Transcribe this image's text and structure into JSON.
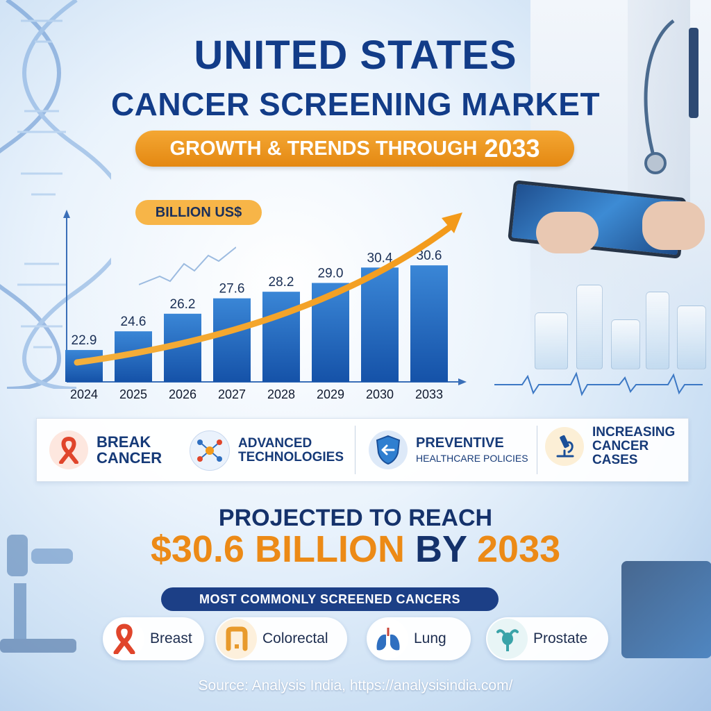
{
  "title_line1": "UNITED STATES",
  "title_line2": "CANCER SCREENING MARKET",
  "subtitle_text": "GROWTH & TRENDS THROUGH",
  "subtitle_year": "2033",
  "unit_label": "BILLION US$",
  "chart_data": {
    "type": "bar",
    "categories": [
      "2024",
      "2025",
      "2026",
      "2027",
      "2028",
      "2029",
      "2030",
      "2033"
    ],
    "values": [
      22.9,
      24.6,
      26.2,
      27.6,
      28.2,
      29.0,
      30.4,
      30.6
    ],
    "value_labels": [
      "22.9",
      "24.6",
      "26.2",
      "27.6",
      "28.2",
      "29.0",
      "30.4",
      "30.6"
    ],
    "ylabel": "BILLION US$",
    "ylim": [
      20,
      32
    ],
    "grid": false,
    "trend_arrow": true
  },
  "drivers": [
    {
      "line1": "BREAK",
      "line2": "CANCER",
      "icon": "ribbon-icon"
    },
    {
      "line1": "ADVANCED",
      "line2": "TECHNOLOGIES",
      "icon": "network-icon"
    },
    {
      "line1": "PREVENTIVE",
      "line2": "HEALTHCARE POLICIES",
      "icon": "shield-icon"
    },
    {
      "line1": "INCREASING",
      "line2": "CANCER",
      "line3": "CASES",
      "icon": "microscope-icon"
    }
  ],
  "projection": {
    "line1": "PROJECTED TO REACH",
    "amount": "$30.6 BILLION",
    "by": "BY",
    "year": "2033"
  },
  "common_title": "MOST COMMONLY SCREENED CANCERS",
  "cancers": [
    {
      "label": "Breast",
      "icon": "ribbon-icon"
    },
    {
      "label": "Colorectal",
      "icon": "colon-icon"
    },
    {
      "label": "Lung",
      "icon": "lungs-icon"
    },
    {
      "label": "Prostate",
      "icon": "prostate-icon"
    }
  ],
  "source": "Source: Analysis India, https://analysisindia.com/",
  "colors": {
    "navy": "#123c88",
    "orange": "#ec8a16",
    "bar_top": "#3a86d6",
    "bar_bottom": "#1552a8"
  }
}
